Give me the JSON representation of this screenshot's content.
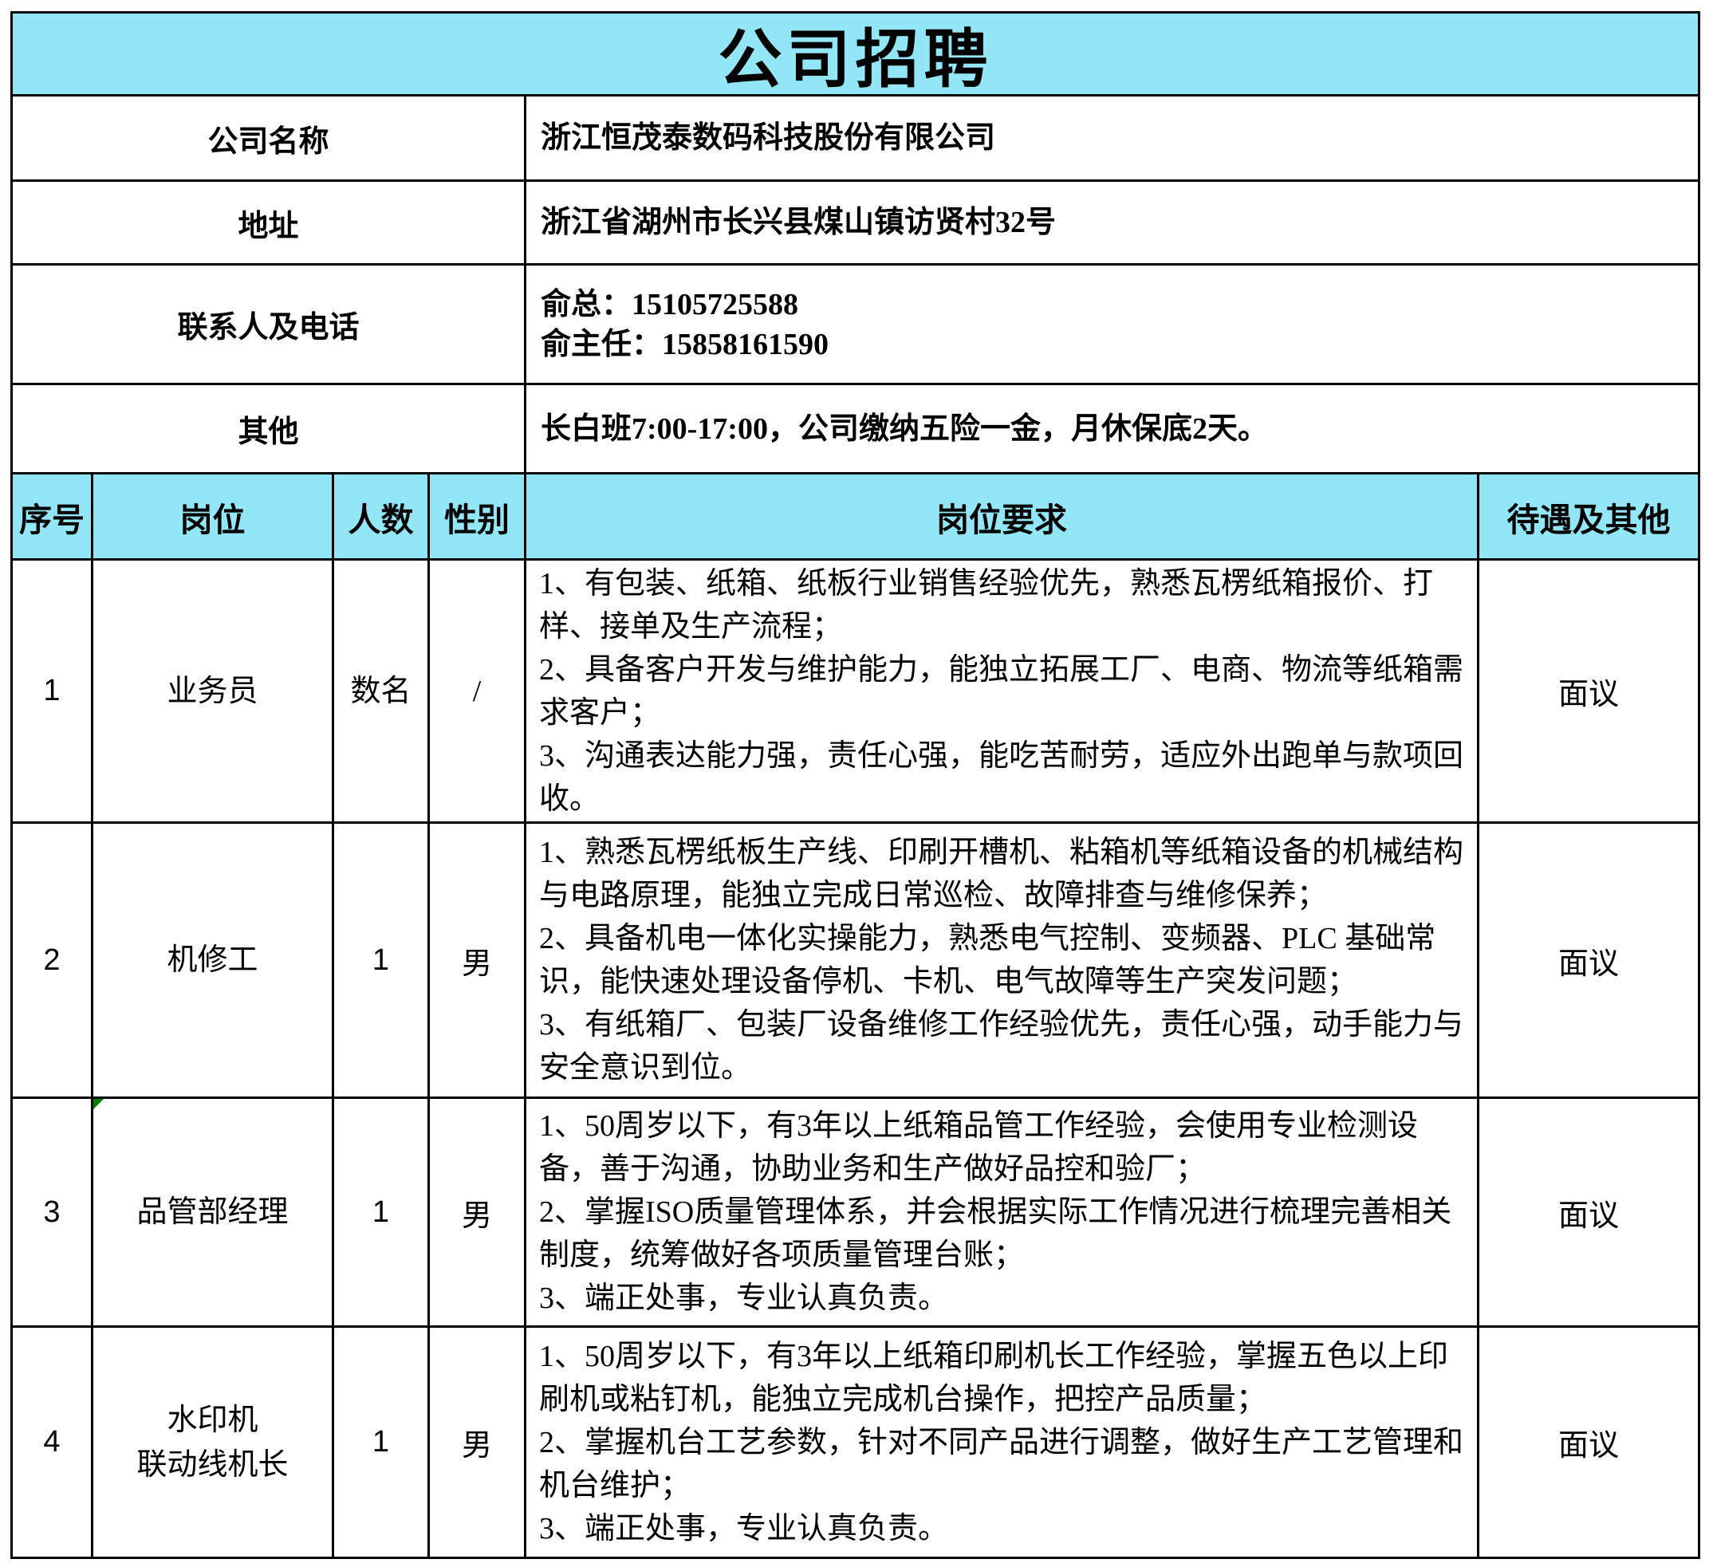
{
  "title": "公司招聘",
  "colors": {
    "band_bg": "#92e6f5",
    "border": "#000000",
    "note_triangle": "#008000"
  },
  "info_rows": [
    {
      "label": "公司名称",
      "value": "浙江恒茂泰数码科技股份有限公司"
    },
    {
      "label": "地址",
      "value": "浙江省湖州市长兴县煤山镇访贤村32号"
    },
    {
      "label": "联系人及电话",
      "value": "俞总：15105725588\n俞主任：15858161590"
    },
    {
      "label": "其他",
      "value": "长白班7:00-17:00，公司缴纳五险一金，月休保底2天。"
    }
  ],
  "table_headers": [
    "序号",
    "岗位",
    "人数",
    "性别",
    "岗位要求",
    "待遇及其他"
  ],
  "jobs": [
    {
      "no": "1",
      "position": "业务员",
      "count": "数名",
      "gender": "/",
      "requirements": "1、有包装、纸箱、纸板行业销售经验优先，熟悉瓦楞纸箱报价、打样、接单及生产流程；\n2、具备客户开发与维护能力，能独立拓展工厂、电商、物流等纸箱需求客户；\n3、沟通表达能力强，责任心强，能吃苦耐劳，适应外出跑单与款项回收。",
      "salary": "面议"
    },
    {
      "no": "2",
      "position": "机修工",
      "count": "1",
      "gender": "男",
      "requirements": "1、熟悉瓦楞纸板生产线、印刷开槽机、粘箱机等纸箱设备的机械结构与电路原理，能独立完成日常巡检、故障排查与维修保养；\n2、具备机电一体化实操能力，熟悉电气控制、变频器、PLC 基础常识，能快速处理设备停机、卡机、电气故障等生产突发问题；\n3、有纸箱厂、包装厂设备维修工作经验优先，责任心强，动手能力与安全意识到位。",
      "salary": "面议"
    },
    {
      "no": "3",
      "position": "品管部经理",
      "count": "1",
      "gender": "男",
      "requirements": "1、50周岁以下，有3年以上纸箱品管工作经验，会使用专业检测设备，善于沟通，协助业务和生产做好品控和验厂；\n2、掌握ISO质量管理体系，并会根据实际工作情况进行梳理完善相关制度，统筹做好各项质量管理台账；\n3、端正处事，专业认真负责。",
      "salary": "面议"
    },
    {
      "no": "4",
      "position": "水印机\n联动线机长",
      "count": "1",
      "gender": "男",
      "requirements": "1、50周岁以下，有3年以上纸箱印刷机长工作经验，掌握五色以上印刷机或粘钉机，能独立完成机台操作，把控产品质量；\n2、掌握机台工艺参数，针对不同产品进行调整，做好生产工艺管理和机台维护；\n3、端正处事，专业认真负责。",
      "salary": "面议"
    }
  ]
}
